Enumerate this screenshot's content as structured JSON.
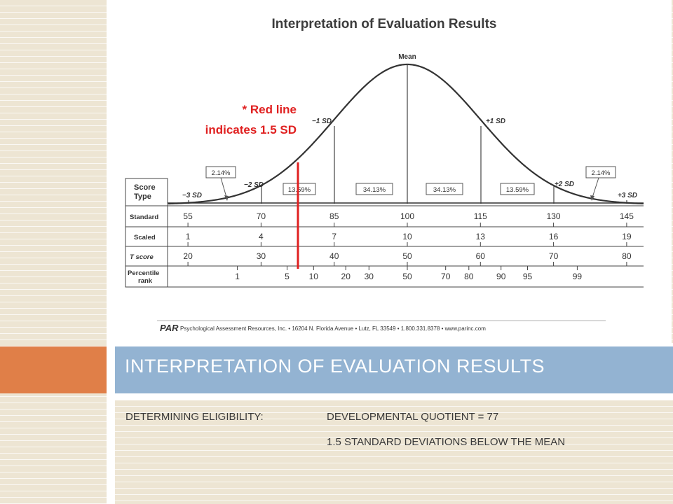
{
  "figure": {
    "title": "Interpretation of Evaluation Results",
    "mean_label": "Mean",
    "sd_labels": [
      "−3 SD",
      "−2 SD",
      "−1 SD",
      "+1 SD",
      "+2 SD",
      "+3 SD"
    ],
    "percent_labels": [
      "2.14%",
      "13.59%",
      "34.13%",
      "34.13%",
      "13.59%",
      "2.14%"
    ],
    "row_headers": {
      "score_type_line1": "Score",
      "score_type_line2": "Type",
      "standard": "Standard",
      "scaled": "Scaled",
      "t_score": "T score",
      "percentile_line1": "Percentile",
      "percentile_line2": "rank"
    },
    "standard_scores": [
      "55",
      "70",
      "85",
      "100",
      "115",
      "130",
      "145"
    ],
    "scaled_scores": [
      "1",
      "4",
      "7",
      "10",
      "13",
      "16",
      "19"
    ],
    "t_scores": [
      "20",
      "30",
      "40",
      "50",
      "60",
      "70",
      "80"
    ],
    "percentile_ranks": [
      "1",
      "5",
      "10",
      "20",
      "30",
      "50",
      "70",
      "80",
      "90",
      "95",
      "99"
    ],
    "annotation_line1": "* Red line",
    "annotation_line2": "indicates 1.5 SD",
    "footer_logo": "PAR",
    "footer_text": "Psychological Assessment Resources, Inc. • 16204 N. Florida Avenue • Lutz, FL 33549 • 1.800.331.8378 • www.parinc.com"
  },
  "slide": {
    "title": "INTERPRETATION OF EVALUATION RESULTS",
    "eligibility_label": "DETERMINING ELIGIBILITY:",
    "dq_text": "DEVELOPMENTAL QUOTIENT = 77",
    "sd_text": "1.5 STANDARD DEVIATIONS BELOW THE MEAN"
  },
  "colors": {
    "accent_orange": "#e07f48",
    "title_bar_blue": "#93b3d2",
    "red_line": "#e02020",
    "annotation_red": "#e02020",
    "background_lines": "#ede5d3"
  }
}
